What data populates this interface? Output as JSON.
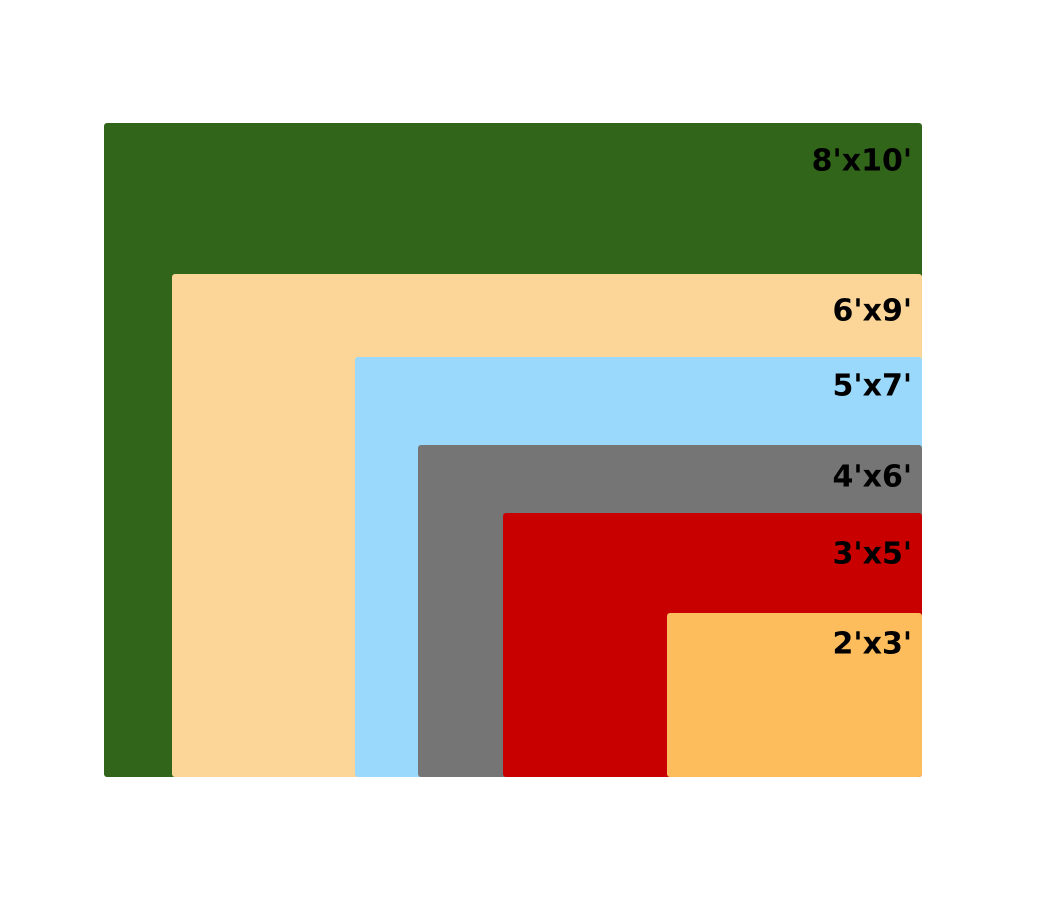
{
  "rugs": [
    {
      "label": "8'x10'"
    },
    {
      "label": "6'x9'"
    },
    {
      "label": "5'x7'"
    },
    {
      "label": "4'x6'"
    },
    {
      "label": "3'x5'"
    },
    {
      "label": "2'x3'"
    }
  ]
}
